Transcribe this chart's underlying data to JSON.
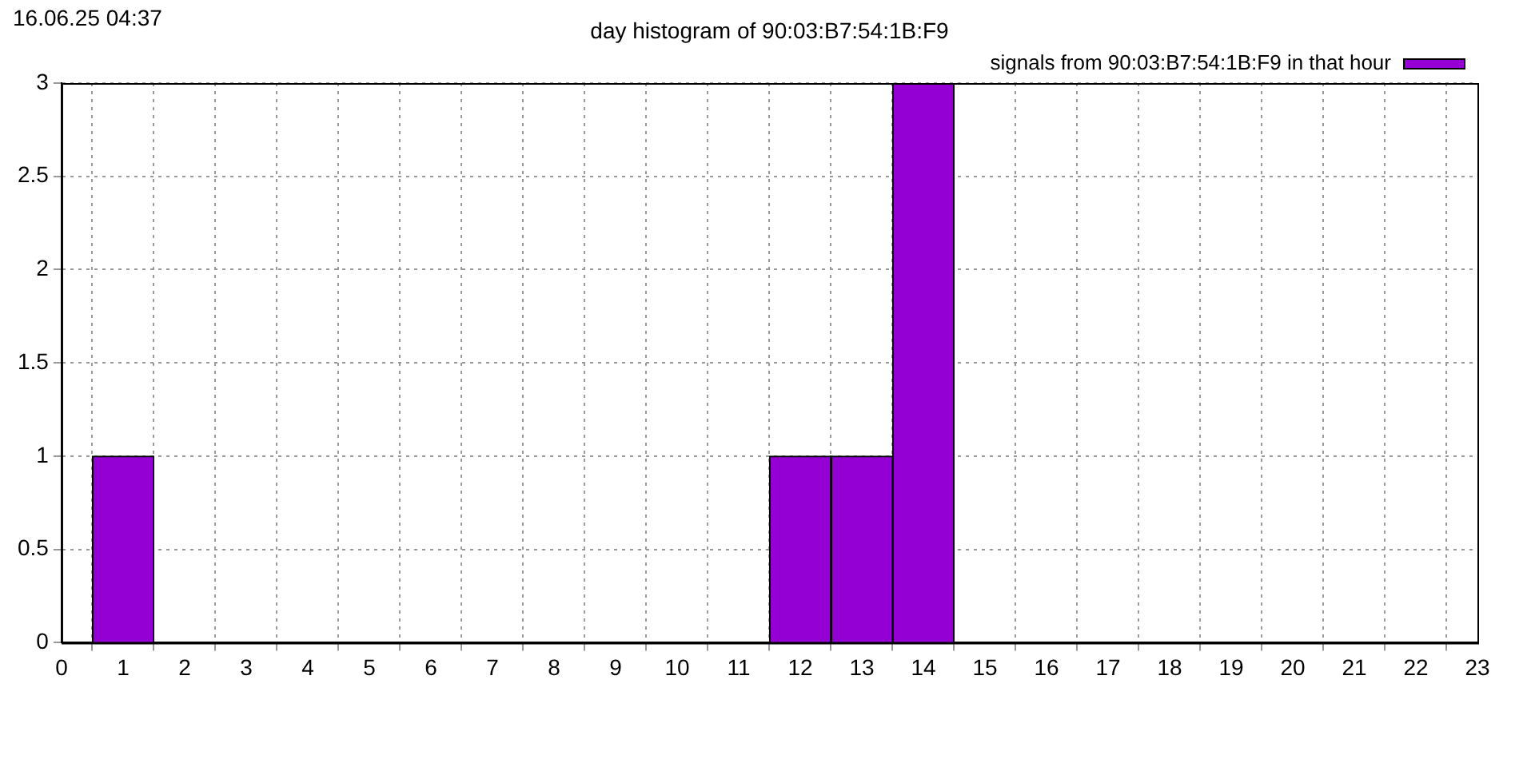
{
  "chart_data": {
    "type": "histogram",
    "title": "day histogram of 90:03:B7:54:1B:F9",
    "annotations": [
      "16.06.25 04:37"
    ],
    "bins": [
      0.5,
      1.5,
      2.5,
      3.5,
      4.5,
      5.5,
      6.5,
      7.5,
      8.5,
      9.5,
      10.5,
      11.5,
      12.5,
      13.5,
      14.5,
      15.5,
      16.5,
      17.5,
      18.5,
      19.5,
      20.5,
      21.5,
      22.5
    ],
    "series": [
      {
        "name": "signals from 90:03:B7:54:1B:F9 in that hour",
        "color": "#9400d3",
        "values": [
          1,
          0,
          0,
          0,
          0,
          0,
          0,
          0,
          0,
          0,
          0,
          1,
          1,
          3,
          0,
          0,
          0,
          0,
          0,
          0,
          0,
          0
        ]
      }
    ],
    "xlim": [
      0,
      23
    ],
    "xticks": [
      0,
      1,
      2,
      3,
      4,
      5,
      6,
      7,
      8,
      9,
      10,
      11,
      12,
      13,
      14,
      15,
      16,
      17,
      18,
      19,
      20,
      21,
      22,
      23
    ],
    "ylim": [
      0,
      3
    ],
    "yticks": [
      0,
      0.5,
      1,
      1.5,
      2,
      2.5,
      3
    ],
    "grid": true,
    "legend": "top right"
  }
}
